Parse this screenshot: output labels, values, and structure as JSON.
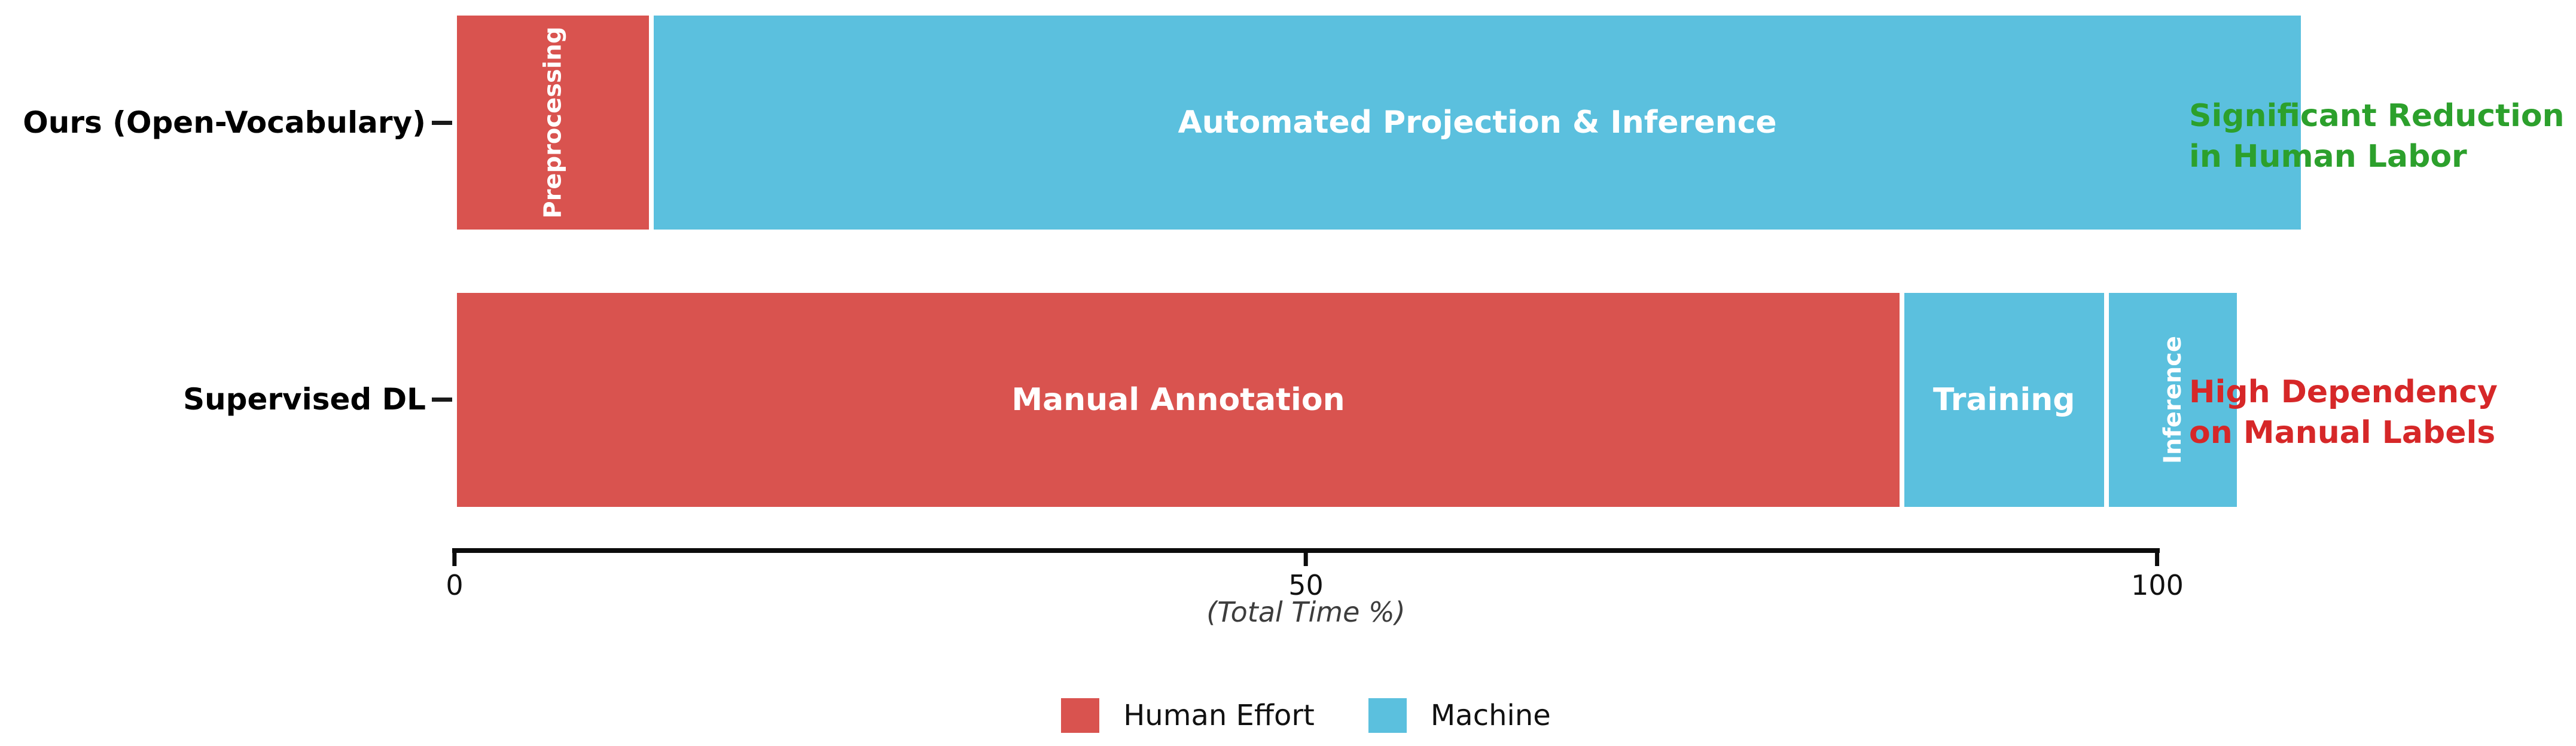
{
  "chart_data": {
    "type": "bar",
    "subtype": "horizontal-stacked",
    "xlabel": "(Total Time %)",
    "xlim": [
      0,
      100
    ],
    "xticks": [
      0,
      50,
      100
    ],
    "categories": [
      "Ours (Open-Vocabulary)",
      "Supervised DL"
    ],
    "series_colors": {
      "Human Effort": "#d9534f",
      "Machine": "#5bc0de"
    },
    "rows": [
      {
        "category": "Ours (Open-Vocabulary)",
        "segments": [
          {
            "label": "Preprocessing",
            "value": 3,
            "series": "Human Effort",
            "label_orientation": "vertical"
          },
          {
            "label": "Automated Projection & Inference",
            "value": 97,
            "series": "Machine",
            "label_orientation": "horizontal"
          }
        ],
        "annotation": {
          "line1": "Significant Reduction",
          "line2": "in Human Labor",
          "color": "#2ca02c"
        }
      },
      {
        "category": "Supervised DL",
        "segments": [
          {
            "label": "Manual Annotation",
            "value": 85,
            "series": "Human Effort",
            "label_orientation": "horizontal"
          },
          {
            "label": "Training",
            "value": 12,
            "series": "Machine",
            "label_orientation": "horizontal"
          },
          {
            "label": "Inference",
            "value": 3,
            "series": "Machine",
            "label_orientation": "vertical"
          }
        ],
        "annotation": {
          "line1": "High Dependency",
          "line2": "on Manual Labels",
          "color": "#d62728"
        }
      }
    ],
    "legend": [
      {
        "label": "Human Effort",
        "color": "#d9534f"
      },
      {
        "label": "Machine",
        "color": "#5bc0de"
      }
    ],
    "legend_position": "bottom-center",
    "grid": false,
    "bar_text_color": "#ffffff"
  }
}
